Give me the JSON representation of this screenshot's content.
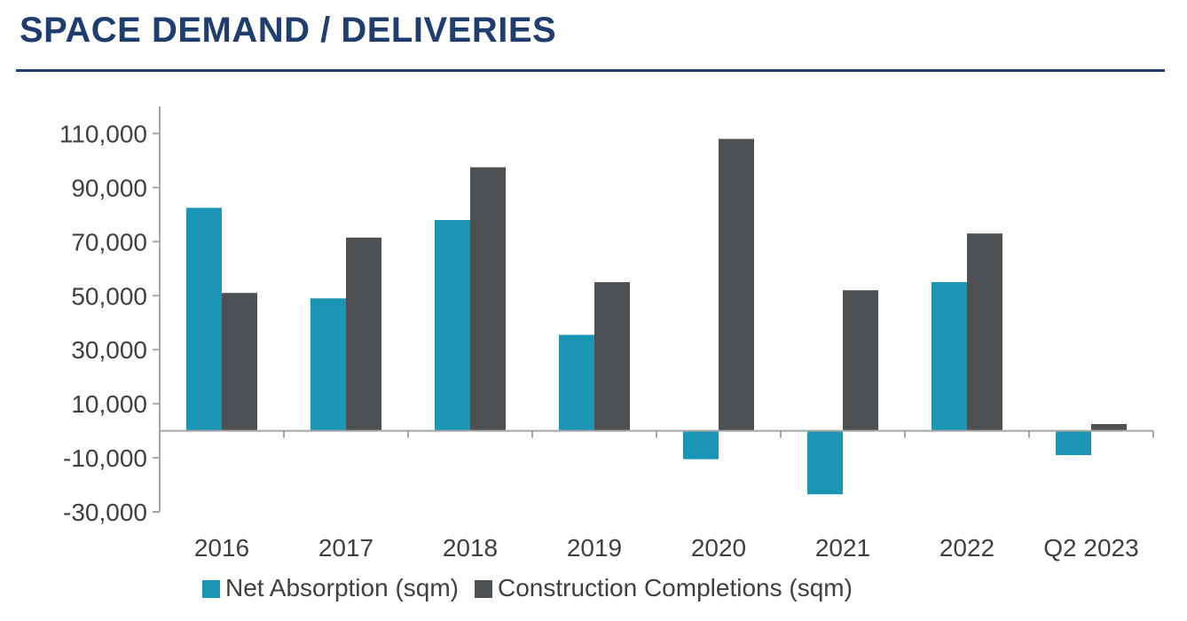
{
  "header": {
    "title": "SPACE DEMAND / DELIVERIES"
  },
  "colors": {
    "title": "#1f3d6e",
    "net_absorption": "#1a96b4",
    "construction": "#4d5154",
    "axis": "#a6a6a6",
    "text": "#404040"
  },
  "chart_data": {
    "type": "bar",
    "title": "",
    "xlabel": "",
    "ylabel": "",
    "categories": [
      "2016",
      "2017",
      "2018",
      "2019",
      "2020",
      "2021",
      "2022",
      "Q2 2023"
    ],
    "series": [
      {
        "name": "Net Absorption (sqm)",
        "values": [
          82500,
          49000,
          78000,
          35500,
          -10500,
          -23500,
          55000,
          -9000
        ]
      },
      {
        "name": "Construction Completions (sqm)",
        "values": [
          51000,
          71500,
          97500,
          55000,
          108000,
          52000,
          73000,
          2500
        ]
      }
    ],
    "ylim": [
      -30000,
      120000
    ],
    "yticks": [
      -30000,
      -10000,
      10000,
      30000,
      50000,
      70000,
      90000,
      110000
    ],
    "ytick_labels": [
      "-30,000",
      "-10,000",
      "10,000",
      "30,000",
      "50,000",
      "70,000",
      "90,000",
      "110,000"
    ],
    "grid": false,
    "legend": "bottom"
  }
}
